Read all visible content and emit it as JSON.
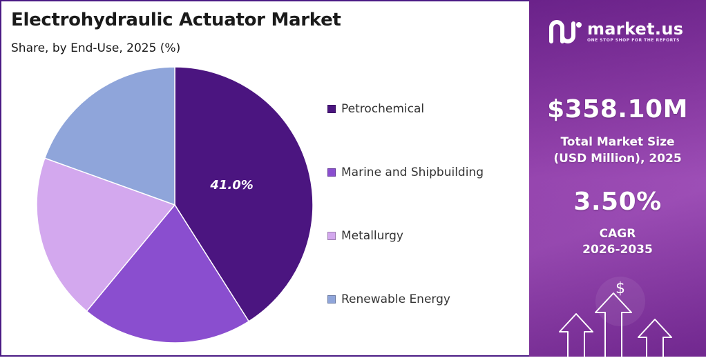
{
  "header": {
    "title": "Electrohydraulic Actuator Market",
    "subtitle": "Share, by End-Use, 2025 (%)"
  },
  "chart_data": {
    "type": "pie",
    "title": "Electrohydraulic Actuator Market",
    "subtitle": "Share, by End-Use, 2025 (%)",
    "categories": [
      "Petrochemical",
      "Marine and Shipbuilding",
      "Metallurgy",
      "Renewable Energy"
    ],
    "values": [
      41.0,
      20.0,
      19.5,
      19.5
    ],
    "colors": [
      "#4b1580",
      "#8a4ecf",
      "#d3a8ee",
      "#8fa5da"
    ],
    "data_labels": [
      "41.0%",
      "",
      "",
      ""
    ],
    "legend_position": "right",
    "start_angle": "top",
    "direction": "clockwise"
  },
  "sidebar": {
    "logo_text": "market.us",
    "logo_tagline": "ONE STOP SHOP FOR THE REPORTS",
    "market_size_value": "$358.10M",
    "market_size_label_line1": "Total Market Size",
    "market_size_label_line2": "(USD Million), 2025",
    "cagr_value": "3.50%",
    "cagr_label_line1": "CAGR",
    "cagr_label_line2": "2026-2035",
    "dollar_symbol": "$",
    "icons": [
      "logo-icon",
      "arrow-up-icon",
      "dollar-icon"
    ]
  }
}
